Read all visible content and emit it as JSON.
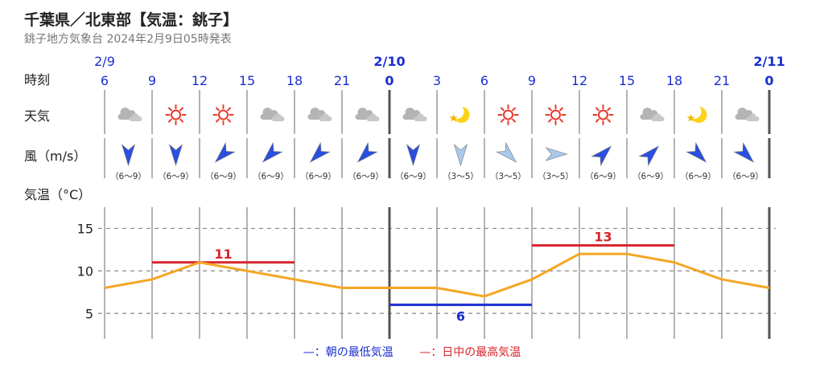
{
  "header": {
    "title": "千葉県／北東部【気温：銚子】",
    "subtitle": "銚子地方気象台 2024年2月9日05時発表"
  },
  "row_labels": {
    "time": "時刻",
    "weather": "天気",
    "wind": "風（m/s）",
    "temp": "気温（°C）"
  },
  "legend": {
    "min_label": "—：朝の最低気温",
    "max_label": "—：日中の最高気温"
  },
  "colors": {
    "line": "#f5a623",
    "min": "#1a2ecf",
    "max": "#d8242a",
    "date": "#1a2ecf",
    "wind_strong": "#2a4fe0",
    "wind_light": "#a8c9ec"
  },
  "chart_data": {
    "type": "line",
    "dates": [
      {
        "label": "2/9",
        "at_index": 0
      },
      {
        "label": "2/10",
        "at_index": 6
      },
      {
        "label": "2/11",
        "at_index": 14
      }
    ],
    "hours": [
      "6",
      "9",
      "12",
      "15",
      "18",
      "21",
      "0",
      "3",
      "6",
      "9",
      "12",
      "15",
      "18",
      "21",
      "0"
    ],
    "bold_hours": [
      6,
      14
    ],
    "weather_icons": [
      "cloud-icon",
      "sun-icon",
      "sun-icon",
      "cloud-icon",
      "cloud-icon",
      "cloud-icon",
      "cloud-icon",
      "moon-icon",
      "sun-icon",
      "sun-icon",
      "sun-icon",
      "cloud-icon",
      "moon-icon",
      "cloud-icon"
    ],
    "wind": [
      {
        "direction": "N",
        "speed": "（6〜9）",
        "strength": "strong"
      },
      {
        "direction": "N",
        "speed": "（6〜9）",
        "strength": "strong"
      },
      {
        "direction": "NE",
        "speed": "（6〜9）",
        "strength": "strong"
      },
      {
        "direction": "NE",
        "speed": "（6〜9）",
        "strength": "strong"
      },
      {
        "direction": "NE",
        "speed": "（6〜9）",
        "strength": "strong"
      },
      {
        "direction": "NE",
        "speed": "（6〜9）",
        "strength": "strong"
      },
      {
        "direction": "N",
        "speed": "（6〜9）",
        "strength": "strong"
      },
      {
        "direction": "N",
        "speed": "（3〜5）",
        "strength": "light"
      },
      {
        "direction": "NW",
        "speed": "（3〜5）",
        "strength": "light"
      },
      {
        "direction": "W",
        "speed": "（3〜5）",
        "strength": "light"
      },
      {
        "direction": "SW",
        "speed": "（6〜9）",
        "strength": "strong"
      },
      {
        "direction": "SW",
        "speed": "（6〜9）",
        "strength": "strong"
      },
      {
        "direction": "NW",
        "speed": "（6〜9）",
        "strength": "strong"
      },
      {
        "direction": "NW",
        "speed": "（6〜9）",
        "strength": "strong"
      }
    ],
    "temperature": [
      8,
      9,
      11,
      10,
      9,
      8,
      8,
      8,
      7,
      9,
      12,
      12,
      11,
      9,
      8
    ],
    "y_ticks": [
      5,
      10,
      15
    ],
    "ylim": [
      2,
      17.5
    ],
    "grid": true,
    "min_temp": {
      "value": 6,
      "label": "6",
      "from_index": 6,
      "to_index": 9
    },
    "max_temp": [
      {
        "value": 11,
        "label": "11",
        "from_index": 1,
        "to_index": 4
      },
      {
        "value": 13,
        "label": "13",
        "from_index": 9,
        "to_index": 12
      }
    ]
  }
}
